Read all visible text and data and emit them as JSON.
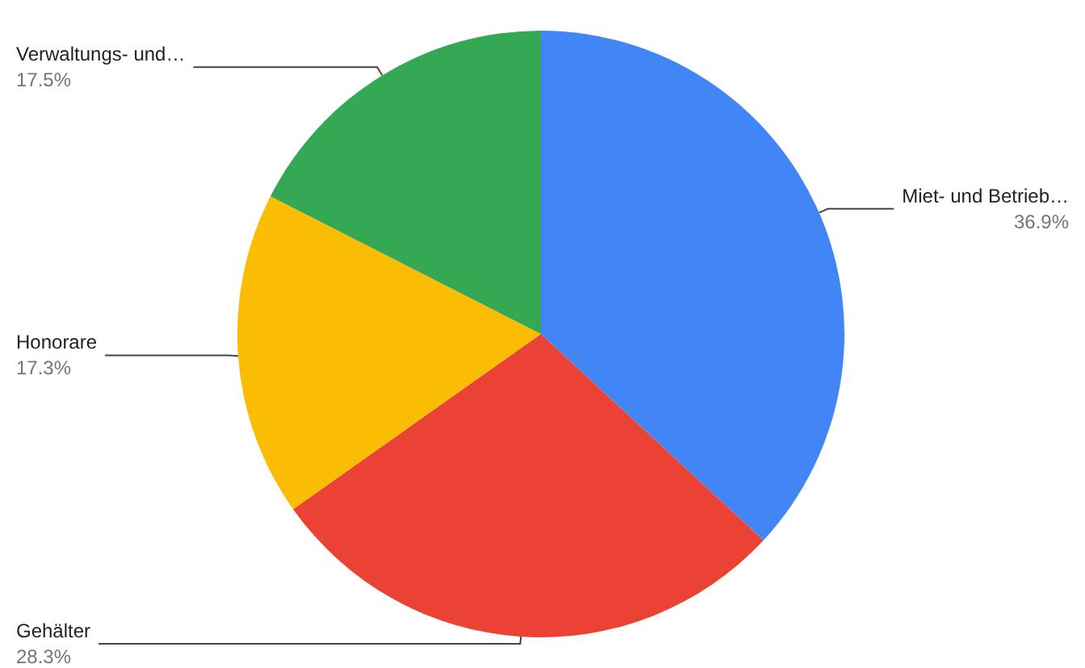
{
  "chart_data": {
    "type": "pie",
    "categories": [
      "Miet- und Betrieb…",
      "Gehälter",
      "Honorare",
      "Verwaltungs- und…"
    ],
    "values": [
      36.9,
      28.3,
      17.3,
      17.5
    ],
    "value_labels": [
      "36.9%",
      "28.3%",
      "17.3%",
      "17.5%"
    ],
    "colors": [
      "#4285f4",
      "#ea4335",
      "#fbbc04",
      "#34a853"
    ],
    "legend": false
  }
}
